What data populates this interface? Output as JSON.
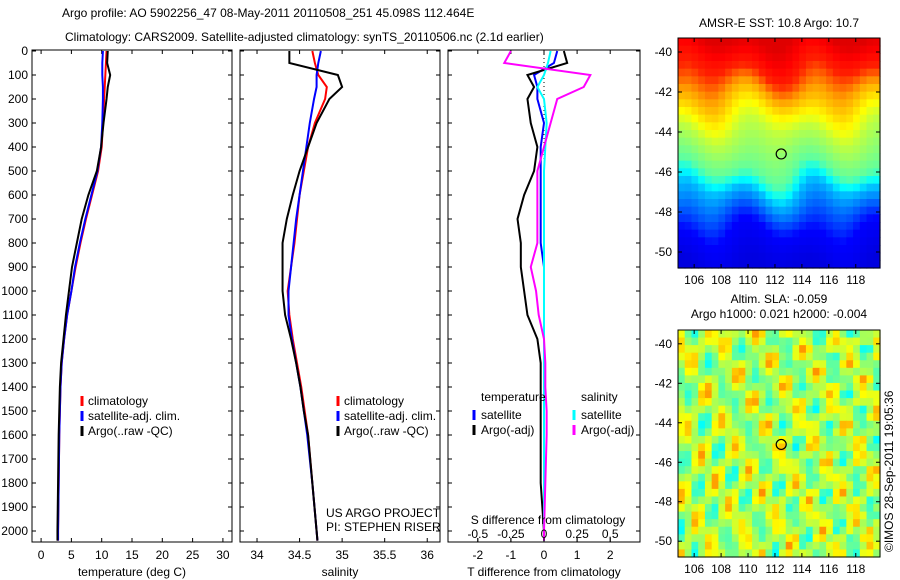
{
  "title_line1": "Argo profile: AO 5902256_47 08-May-2011 20110508_251 45.098S 112.464E",
  "title_line2": "Climatology: CARS2009. Satellite-adjusted climatology: synTS_20110506.nc (2.1d earlier)",
  "credit": "©IMOS 28-Sep-2011 19:05:36",
  "colors": {
    "climatology": "#ff0000",
    "satellite": "#0000ff",
    "argo": "#000000",
    "sal_satellite": "#00ffff",
    "sal_argo": "#ff00ff"
  },
  "chart_data": [
    {
      "type": "line",
      "name": "temperature",
      "xlabel": "temperature (deg C)",
      "ylabel": "",
      "xlim": [
        -1.5,
        31.5
      ],
      "ylim": [
        2050,
        0
      ],
      "xticks": [
        "0",
        "5",
        "10",
        "15",
        "20",
        "25",
        "30"
      ],
      "yticks": [
        "0",
        "100",
        "200",
        "300",
        "400",
        "500",
        "600",
        "700",
        "800",
        "900",
        "1000",
        "1100",
        "1200",
        "1300",
        "1400",
        "1500",
        "1600",
        "1700",
        "1800",
        "1900",
        "2000"
      ],
      "legend": [
        "climatology",
        "satellite-adj. clim.",
        "Argo(..raw -QC)"
      ],
      "depth": [
        0,
        50,
        100,
        150,
        200,
        300,
        400,
        500,
        600,
        700,
        800,
        900,
        1000,
        1100,
        1200,
        1300,
        1400,
        1500,
        1600,
        1800,
        2000,
        2040
      ],
      "series": [
        {
          "name": "climatology",
          "values": [
            10.8,
            10.7,
            10.6,
            10.5,
            10.4,
            10.2,
            10,
            9.4,
            8.4,
            7.4,
            6.5,
            5.7,
            5,
            4.3,
            3.8,
            3.4,
            3.2,
            3.1,
            3,
            2.9,
            2.8,
            2.8
          ]
        },
        {
          "name": "satellite-adj. clim.",
          "values": [
            10.2,
            10.1,
            10.1,
            10.2,
            10.2,
            10.1,
            9.9,
            9.3,
            8.3,
            7.3,
            6.4,
            5.6,
            5,
            4.3,
            3.8,
            3.4,
            3.2,
            3.1,
            3,
            2.9,
            2.8,
            2.8
          ]
        },
        {
          "name": "Argo(..raw -QC)",
          "values": [
            11,
            10.9,
            11.4,
            11,
            10.8,
            10.3,
            9.9,
            9.2,
            7.8,
            6.7,
            5.9,
            5.1,
            4.6,
            4.1,
            3.7,
            3.3,
            3.1,
            3,
            2.9,
            2.8,
            2.7,
            2.7
          ]
        }
      ]
    },
    {
      "type": "line",
      "name": "salinity",
      "xlabel": "salinity",
      "xlim": [
        33.8,
        36.15
      ],
      "ylim": [
        2050,
        0
      ],
      "xticks": [
        "34",
        "34.5",
        "35",
        "35.5",
        "36"
      ],
      "legend": [
        "climatology",
        "satellite-adj. clim.",
        "Argo(..raw -QC)"
      ],
      "annotation": [
        "US ARGO PROJECT",
        "PI: STEPHEN RISER"
      ],
      "depth": [
        0,
        50,
        100,
        150,
        200,
        300,
        400,
        500,
        600,
        700,
        800,
        900,
        1000,
        1100,
        1200,
        1300,
        1400,
        1500,
        1600,
        1800,
        2000,
        2040
      ],
      "series": [
        {
          "name": "climatology",
          "values": [
            34.65,
            34.68,
            34.72,
            34.82,
            34.8,
            34.68,
            34.6,
            34.55,
            34.5,
            34.47,
            34.44,
            34.4,
            34.36,
            34.38,
            34.42,
            34.47,
            34.52,
            34.56,
            34.6,
            34.65,
            34.7,
            34.71
          ]
        },
        {
          "name": "satellite-adj. clim.",
          "values": [
            34.75,
            34.72,
            34.7,
            34.7,
            34.67,
            34.62,
            34.58,
            34.54,
            34.5,
            34.46,
            34.43,
            34.4,
            34.37,
            34.37,
            34.41,
            34.46,
            34.51,
            34.55,
            34.59,
            34.65,
            34.7,
            34.71
          ]
        },
        {
          "name": "Argo(..raw -QC)",
          "values": [
            34.38,
            34.38,
            34.95,
            35,
            34.85,
            34.7,
            34.6,
            34.5,
            34.42,
            34.35,
            34.3,
            34.3,
            34.3,
            34.33,
            34.4,
            34.46,
            34.51,
            34.55,
            34.6,
            34.65,
            34.7,
            34.71
          ]
        }
      ]
    },
    {
      "type": "line",
      "name": "difference",
      "xlabel": "T difference from climatology",
      "top_xlabel": "S difference from climatology",
      "xlim": [
        -2.9,
        2.9
      ],
      "ylim": [
        2050,
        0
      ],
      "xticks": [
        "-2",
        "-1",
        "0",
        "1",
        "2"
      ],
      "top_xticks": [
        "-0.5",
        "-0.25",
        "0",
        "0.25",
        "0.5"
      ],
      "legend_headers": [
        "temperature",
        "salinity"
      ],
      "legend": [
        "satellite",
        "Argo(-adj)",
        "satellite",
        "Argo(-adj)"
      ],
      "depth": [
        0,
        50,
        100,
        150,
        200,
        300,
        400,
        500,
        600,
        700,
        800,
        900,
        1000,
        1100,
        1200,
        1300,
        1400,
        1500,
        1600,
        1800,
        2000,
        2040
      ],
      "series": [
        {
          "name": "T satellite",
          "values": [
            0.4,
            0.3,
            -0.3,
            -0.2,
            -0.2,
            0,
            -0.1,
            -0.1,
            -0.1,
            -0.1,
            -0.1,
            0,
            0,
            0,
            0,
            0,
            0,
            0,
            0,
            0,
            0,
            0
          ]
        },
        {
          "name": "T Argo(-adj)",
          "values": [
            0.6,
            0.7,
            -0.5,
            -0.3,
            -0.5,
            -0.4,
            -0.2,
            -0.3,
            -0.6,
            -0.8,
            -0.7,
            -0.7,
            -0.6,
            -0.5,
            -0.2,
            -0.1,
            -0.1,
            -0.1,
            -0.1,
            -0.1,
            0,
            0
          ]
        },
        {
          "name": "S satellite",
          "values": [
            0.05,
            0.03,
            0,
            -0.05,
            0,
            0.02,
            0.01,
            0,
            0,
            0,
            0,
            0,
            0,
            0,
            0,
            0,
            0,
            0,
            0,
            0,
            0,
            0
          ]
        },
        {
          "name": "S Argo(-adj)",
          "values": [
            -0.25,
            -0.3,
            0.35,
            0.3,
            0.1,
            0.05,
            0,
            -0.05,
            -0.05,
            -0.05,
            -0.05,
            -0.1,
            -0.06,
            -0.04,
            0,
            0.01,
            0.01,
            0.02,
            0.02,
            0.01,
            0,
            0
          ]
        }
      ]
    },
    {
      "type": "heatmap",
      "name": "sst-map",
      "title": "AMSR-E SST: 10.8 Argo: 10.7",
      "xticks": [
        "106",
        "108",
        "110",
        "112",
        "114",
        "116",
        "118"
      ],
      "yticks": [
        "-40",
        "-42",
        "-44",
        "-46",
        "-48",
        "-50"
      ],
      "xlim": [
        104.8,
        119.8
      ],
      "ylim": [
        -50.8,
        -39.3
      ],
      "colormap": "jet",
      "marker": {
        "lon": 112.464,
        "lat": -45.098
      },
      "sst_by_lat": {
        "lat": [
          -39.3,
          -41,
          -42,
          -44,
          -46,
          -47,
          -48,
          -49,
          -50.8
        ],
        "sst": [
          17.5,
          16.5,
          14.5,
          12,
          10.5,
          8,
          6.5,
          5,
          4.5
        ]
      }
    },
    {
      "type": "heatmap",
      "name": "sla-map",
      "title": "Altim. SLA: -0.059",
      "subtitle": "Argo h1000: 0.021 h2000: -0.004",
      "xticks": [
        "106",
        "108",
        "110",
        "112",
        "114",
        "116",
        "118"
      ],
      "yticks": [
        "-40",
        "-42",
        "-44",
        "-46",
        "-48",
        "-50"
      ],
      "xlim": [
        104.8,
        119.8
      ],
      "ylim": [
        -50.8,
        -39.3
      ],
      "colormap": "jet",
      "marker": {
        "lon": 112.464,
        "lat": -45.098
      }
    }
  ]
}
